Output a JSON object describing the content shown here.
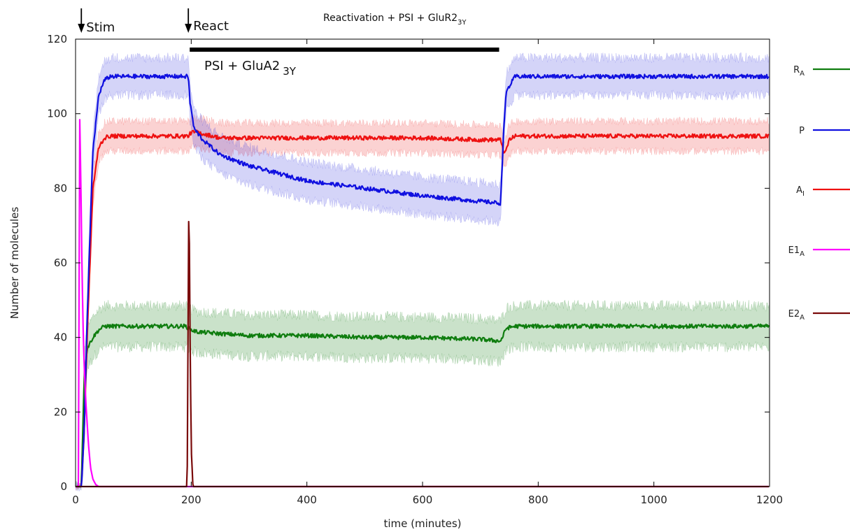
{
  "chart_data": {
    "type": "line",
    "title": "Reactivation + PSI + GluR2",
    "title_sub": "3Y",
    "xlabel": "time (minutes)",
    "ylabel": "Number of molecules",
    "xlim": [
      0,
      1200
    ],
    "ylim": [
      0,
      120
    ],
    "xticks": [
      0,
      200,
      400,
      600,
      800,
      1000,
      1200
    ],
    "yticks": [
      0,
      20,
      40,
      60,
      80,
      100,
      120
    ],
    "grid": false,
    "legend_position": "right",
    "annotations": {
      "stim_label": "Stim",
      "stim_x": 10,
      "react_label": "React",
      "react_x": 195,
      "treatment_label": "PSI + GluA2",
      "treatment_sub": "3Y",
      "treatment_range": [
        195,
        730
      ]
    },
    "series": [
      {
        "name": "R",
        "name_sub": "A",
        "color": "#0f7d0f",
        "band_color": "#0f7d0f",
        "x": [
          0,
          10,
          15,
          20,
          30,
          40,
          50,
          60,
          80,
          100,
          150,
          190,
          200,
          210,
          250,
          300,
          400,
          500,
          600,
          700,
          735,
          745,
          760,
          800,
          900,
          1000,
          1100,
          1200
        ],
        "values": [
          0,
          0,
          30,
          37,
          40,
          42,
          43,
          43,
          43,
          43,
          43,
          43,
          42,
          41.5,
          41,
          40.5,
          40.5,
          40,
          40,
          39.5,
          39,
          42.5,
          43,
          43,
          43,
          43,
          43,
          43
        ],
        "band": 5.5
      },
      {
        "name": "P",
        "name_sub": "",
        "color": "#1010e0",
        "band_color": "#3a3ae0",
        "x": [
          0,
          10,
          15,
          20,
          30,
          40,
          50,
          60,
          80,
          100,
          150,
          195,
          198,
          205,
          220,
          250,
          300,
          400,
          500,
          600,
          700,
          735,
          740,
          745,
          760,
          800,
          900,
          1000,
          1100,
          1200
        ],
        "values": [
          0,
          0,
          15,
          45,
          90,
          105,
          109,
          110,
          110,
          110,
          110,
          110,
          103,
          96,
          93,
          89,
          86,
          82,
          80,
          78,
          76.5,
          76,
          95,
          106,
          110,
          110,
          110,
          110,
          110,
          110
        ],
        "band": 5
      },
      {
        "name": "A",
        "name_sub": "I",
        "color": "#ee1111",
        "band_color": "#ee3333",
        "x": [
          0,
          10,
          15,
          20,
          30,
          40,
          50,
          60,
          80,
          100,
          150,
          195,
          200,
          210,
          250,
          300,
          400,
          500,
          600,
          700,
          735,
          742,
          750,
          760,
          800,
          900,
          1000,
          1100,
          1200
        ],
        "values": [
          0,
          0,
          15,
          40,
          80,
          91,
          93.5,
          94,
          94,
          94,
          94,
          94,
          95,
          95,
          93.5,
          93.5,
          93.5,
          93.5,
          93.5,
          93,
          93,
          89,
          93,
          94,
          94,
          94,
          94,
          94,
          94
        ],
        "band": 4
      },
      {
        "name": "E1",
        "name_sub": "A",
        "color": "#ff00ff",
        "band_color": "#ff00ff",
        "x": [
          0,
          5,
          7,
          9,
          11,
          13,
          15,
          18,
          22,
          26,
          30,
          35,
          40,
          45,
          1200
        ],
        "values": [
          0,
          0,
          100,
          84,
          60,
          43,
          32,
          22,
          12,
          5,
          2,
          0.5,
          0,
          0,
          0
        ],
        "band": 0
      },
      {
        "name": "E2",
        "name_sub": "A",
        "color": "#7a0a0a",
        "band_color": "#7a0a0a",
        "x": [
          0,
          193,
          196,
          198,
          200,
          203,
          1200
        ],
        "values": [
          0,
          0,
          82,
          40,
          10,
          0,
          0
        ],
        "band": 0
      }
    ]
  }
}
